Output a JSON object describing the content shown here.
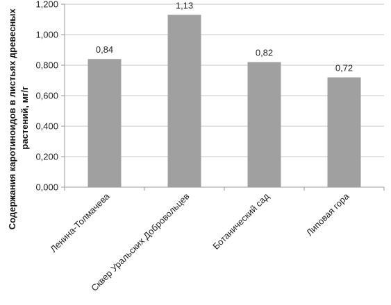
{
  "chart_data": {
    "type": "bar",
    "title": "",
    "xlabel": "",
    "ylabel_lines": [
      "Содержания каротиноидов в листьях древесных",
      "растений, мг/г"
    ],
    "categories": [
      "Ленина-Толмачева",
      "Сквер Уральских Добровольцев",
      "Ботанический сад",
      "Липовая гора"
    ],
    "values": [
      0.84,
      1.13,
      0.82,
      0.72
    ],
    "data_labels": [
      "0,84",
      "1,13",
      "0,82",
      "0,72"
    ],
    "yticks": [
      0,
      0.2,
      0.4,
      0.6,
      0.8,
      1.0,
      1.2
    ],
    "ytick_labels": [
      "0,000",
      "0,200",
      "0,400",
      "0,600",
      "0,800",
      "1,000",
      "1,200"
    ],
    "ylim": [
      0,
      1.2
    ],
    "grid": true,
    "legend": "none",
    "bar_color": "#a0a0a0",
    "gridline_color": "#c8c8c8",
    "axis_color": "#9a9a9a"
  }
}
